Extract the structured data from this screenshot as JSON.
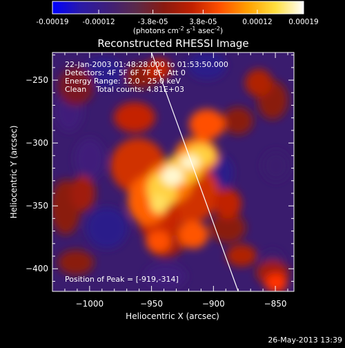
{
  "colorbar": {
    "tick_labels": [
      "-0.00019",
      "-0.00012",
      "-3.8e-05",
      "3.8e-05",
      "0.00012",
      "0.00019"
    ],
    "tick_values": [
      -0.00019,
      -0.00012,
      -3.8e-05,
      3.8e-05,
      0.00012,
      0.00019
    ],
    "range": [
      -0.00019,
      0.00019
    ],
    "unit_main": "(photons cm",
    "unit_exp1": "-2",
    "unit_mid": " s",
    "unit_exp2": "-1",
    "unit_tail": " asec",
    "unit_exp3": "-2",
    "unit_close": ")",
    "colors": [
      "#0000ff",
      "#2a1aa8",
      "#3f1f7a",
      "#5b2a4a",
      "#8a1a10",
      "#c02000",
      "#ff5000",
      "#ffa000",
      "#ffe040",
      "#ffffff"
    ]
  },
  "chart_data": {
    "type": "heatmap",
    "title": "Reconstructed RHESSI Image",
    "xlabel": "Heliocentric X (arcsec)",
    "ylabel": "Heliocentric Y (arcsec)",
    "xlim": [
      -1030,
      -835
    ],
    "ylim": [
      -418,
      -228
    ],
    "x_ticks": [
      -1000,
      -950,
      -900,
      -850
    ],
    "y_ticks": [
      -250,
      -300,
      -350,
      -400
    ],
    "x_tick_labels": [
      "−1000",
      "−950",
      "−900",
      "−850"
    ],
    "y_tick_labels": [
      "−250",
      "−300",
      "−350",
      "−400"
    ],
    "info_lines": [
      "22-Jan-2003 01:48:28.000 to 01:53:50.000",
      "Detectors: 4F 5F 6F 7F 8F, Att 0",
      "Energy Range: 12.0 - 25.0 keV",
      "Clean    Total counts: 4.81E+03"
    ],
    "peak_label": "Position of Peak = [-919,-314]",
    "peak_position": [
      -919,
      -314
    ],
    "limb_line": [
      [
        -950,
        -228
      ],
      [
        -880,
        -418
      ]
    ]
  },
  "footer": {
    "timestamp": "26-May-2013 13:39"
  }
}
